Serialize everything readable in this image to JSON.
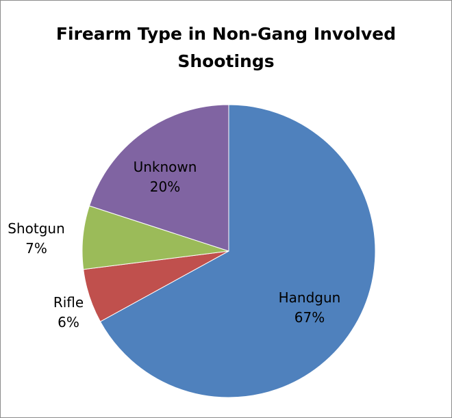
{
  "chart_data": {
    "type": "pie",
    "title_lines": [
      "Firearm Type in Non-Gang Involved",
      "Shootings"
    ],
    "slices": [
      {
        "label": "Handgun",
        "value": 67,
        "display": "67%",
        "color": "#4F81BD"
      },
      {
        "label": "Rifle",
        "value": 6,
        "display": "6%",
        "color": "#C0504D"
      },
      {
        "label": "Shotgun",
        "value": 7,
        "display": "7%",
        "color": "#9BBB59"
      },
      {
        "label": "Unknown",
        "value": 20,
        "display": "20%",
        "color": "#8064A2"
      }
    ],
    "legend": "none"
  }
}
